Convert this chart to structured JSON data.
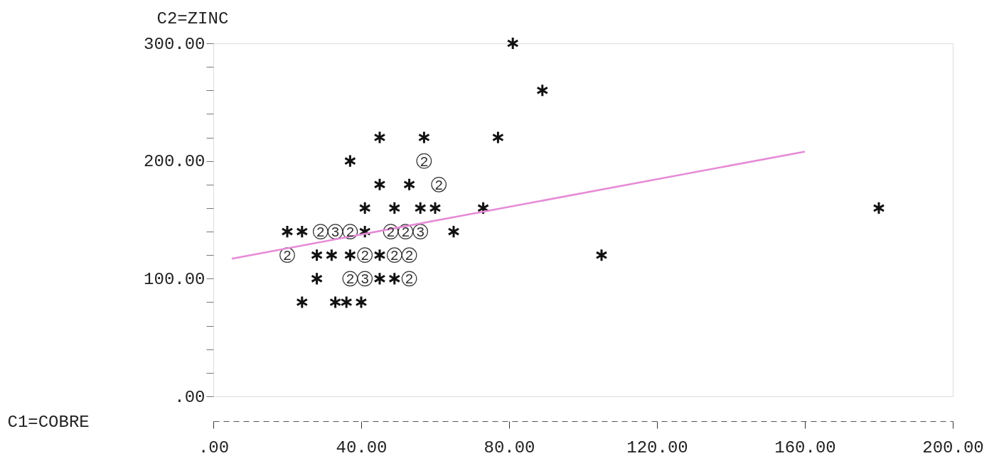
{
  "chart_data": {
    "type": "scatter",
    "xlabel": "C1=COBRE",
    "ylabel": "C2=ZINC",
    "xlim": [
      0,
      200
    ],
    "ylim": [
      0,
      300
    ],
    "xticks": [
      {
        "value": 0,
        "label": ".00"
      },
      {
        "value": 40,
        "label": "40.00"
      },
      {
        "value": 80,
        "label": "80.00"
      },
      {
        "value": 120,
        "label": "120.00"
      },
      {
        "value": 160,
        "label": "160.00"
      },
      {
        "value": 200,
        "label": "200.00"
      }
    ],
    "yticks": [
      {
        "value": 0,
        "label": ".00"
      },
      {
        "value": 20,
        "label": null
      },
      {
        "value": 40,
        "label": null
      },
      {
        "value": 60,
        "label": null
      },
      {
        "value": 80,
        "label": null
      },
      {
        "value": 100,
        "label": "100.00"
      },
      {
        "value": 120,
        "label": null
      },
      {
        "value": 140,
        "label": null
      },
      {
        "value": 160,
        "label": null
      },
      {
        "value": 180,
        "label": null
      },
      {
        "value": 200,
        "label": "200.00"
      },
      {
        "value": 220,
        "label": null
      },
      {
        "value": 240,
        "label": null
      },
      {
        "value": 260,
        "label": null
      },
      {
        "value": 280,
        "label": null
      },
      {
        "value": 300,
        "label": "300.00"
      }
    ],
    "grid": false,
    "series": [
      {
        "color": "#111111",
        "marker": "cross",
        "x": [
          81,
          89,
          45,
          57,
          77,
          37,
          45,
          53,
          41,
          49,
          56,
          60,
          73,
          180,
          20,
          24,
          41,
          65,
          28,
          32,
          37,
          45,
          105,
          28,
          45,
          49,
          24,
          33,
          36,
          40
        ],
        "values": [
          300,
          260,
          220,
          220,
          220,
          200,
          180,
          180,
          160,
          160,
          160,
          160,
          160,
          160,
          140,
          140,
          140,
          140,
          120,
          120,
          120,
          120,
          120,
          100,
          100,
          100,
          80,
          80,
          80,
          80
        ]
      },
      {
        "color": "#333333",
        "marker": "circle",
        "x": [
          57,
          61,
          29,
          33,
          37,
          48,
          52,
          56,
          20,
          41,
          49,
          53,
          37,
          41,
          53
        ],
        "values": [
          200,
          180,
          140,
          140,
          140,
          140,
          140,
          140,
          120,
          120,
          120,
          120,
          100,
          100,
          100
        ]
      },
      {
        "type": "line",
        "color": "#e68ad6",
        "x": [
          5,
          160
        ],
        "values": [
          117,
          208
        ]
      }
    ],
    "annotations": [
      {
        "text": "2",
        "x": 57,
        "y": 200
      },
      {
        "text": "2",
        "x": 61,
        "y": 180
      },
      {
        "text": "2",
        "x": 29,
        "y": 140
      },
      {
        "text": "3",
        "x": 33,
        "y": 140
      },
      {
        "text": "2",
        "x": 37,
        "y": 140
      },
      {
        "text": "2",
        "x": 48,
        "y": 140
      },
      {
        "text": "2",
        "x": 52,
        "y": 140
      },
      {
        "text": "3",
        "x": 56,
        "y": 140
      },
      {
        "text": "2",
        "x": 20,
        "y": 120
      },
      {
        "text": "2",
        "x": 41,
        "y": 120
      },
      {
        "text": "2",
        "x": 49,
        "y": 120
      },
      {
        "text": "2",
        "x": 53,
        "y": 120
      },
      {
        "text": "2",
        "x": 37,
        "y": 100
      },
      {
        "text": "3",
        "x": 41,
        "y": 100
      },
      {
        "text": "2",
        "x": 53,
        "y": 100
      }
    ]
  }
}
